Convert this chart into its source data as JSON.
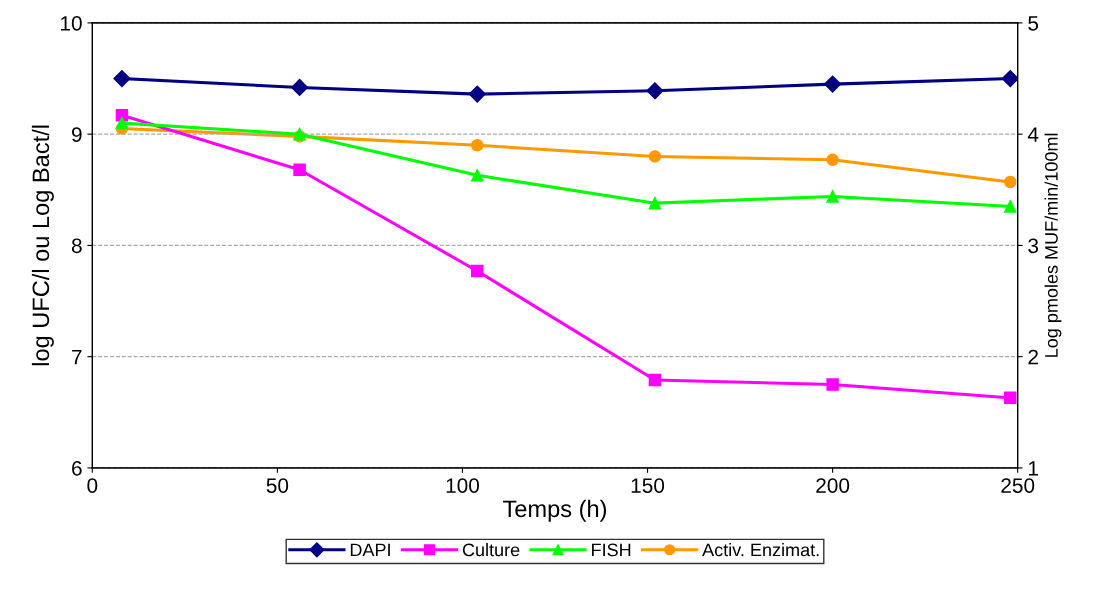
{
  "chart_data": {
    "type": "line",
    "xlabel": "Temps (h)",
    "ylabel": "log UFC/l ou Log Bact/l",
    "y2label": "Log pmoles MUF/min/100ml",
    "x": [
      8,
      56,
      104,
      152,
      200,
      248
    ],
    "series": [
      {
        "name": "DAPI",
        "color": "#000080",
        "marker": "diamond",
        "values": [
          9.5,
          9.42,
          9.36,
          9.39,
          9.45,
          9.5
        ]
      },
      {
        "name": "Culture",
        "color": "#ff00ff",
        "marker": "square",
        "values": [
          9.17,
          8.68,
          7.77,
          6.79,
          6.75,
          6.63
        ]
      },
      {
        "name": "FISH",
        "color": "#00ff00",
        "marker": "triangle",
        "values": [
          9.1,
          9.0,
          8.63,
          8.38,
          8.44,
          8.35
        ]
      },
      {
        "name": "Activ. Enzimat.",
        "color": "#ff9900",
        "marker": "circle",
        "axis": "y2",
        "values": [
          4.05,
          3.98,
          3.9,
          3.8,
          3.77,
          3.57
        ]
      }
    ],
    "xlim": [
      0,
      250
    ],
    "xticks": [
      0,
      50,
      100,
      150,
      200,
      250
    ],
    "ylim": [
      6,
      10
    ],
    "yticks": [
      6,
      7,
      8,
      9,
      10
    ],
    "y2lim": [
      1,
      5
    ],
    "y2ticks": [
      1,
      2,
      3,
      4,
      5
    ],
    "grid": "y",
    "legend": "bottom",
    "line_style": "solid"
  }
}
